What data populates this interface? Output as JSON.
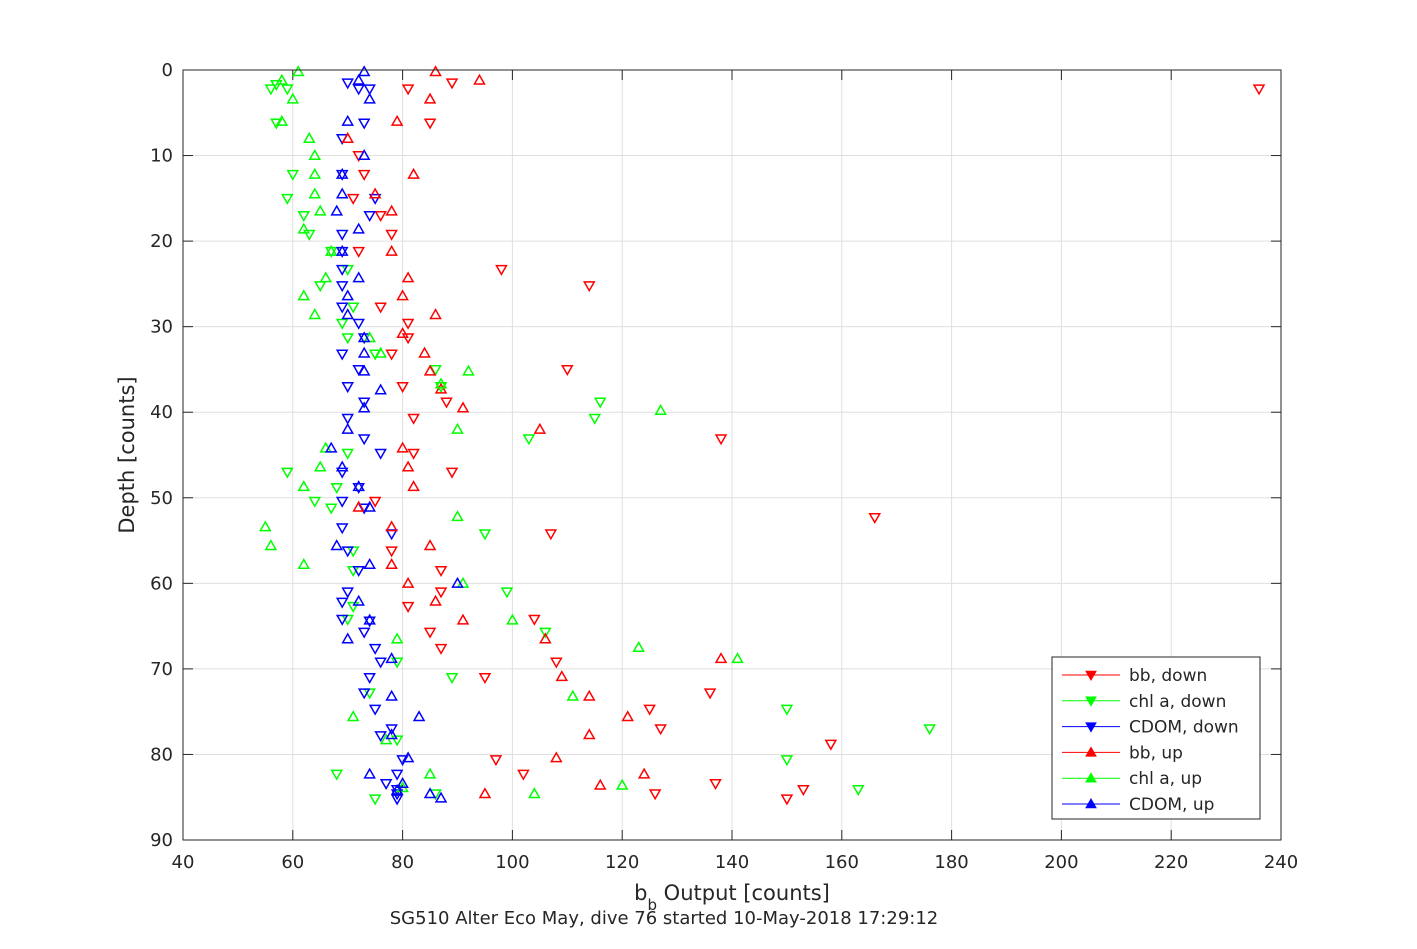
{
  "chart_data": {
    "type": "scatter",
    "xlabel_main": "b",
    "xlabel_sub": "b",
    "xlabel_rest": " Output [counts]",
    "ylabel": "Depth [counts]",
    "caption": "SG510 Alter Eco May, dive 76 started 10-May-2018 17:29:12",
    "xlim": [
      40,
      240
    ],
    "ylim": [
      0,
      90
    ],
    "y_reversed": true,
    "grid": true,
    "legend_position": "bottom-right",
    "x_ticks": [
      "40",
      "60",
      "80",
      "100",
      "120",
      "140",
      "160",
      "180",
      "200",
      "220",
      "240"
    ],
    "y_ticks": [
      "0",
      "10",
      "20",
      "30",
      "40",
      "50",
      "60",
      "70",
      "80",
      "90"
    ],
    "series": [
      {
        "name": "bb, down",
        "color": "#ff0000",
        "marker": "triangle-down",
        "points": [
          [
            89,
            1.5
          ],
          [
            81,
            2.2
          ],
          [
            236,
            2.2
          ],
          [
            85,
            6.2
          ],
          [
            72,
            10
          ],
          [
            73,
            12.2
          ],
          [
            71,
            15
          ],
          [
            76,
            17
          ],
          [
            78,
            19.2
          ],
          [
            72,
            21.2
          ],
          [
            98,
            23.3
          ],
          [
            114,
            25.2
          ],
          [
            76,
            27.7
          ],
          [
            81,
            29.6
          ],
          [
            81,
            31.3
          ],
          [
            78,
            33.2
          ],
          [
            110,
            35
          ],
          [
            80,
            37
          ],
          [
            88,
            38.8
          ],
          [
            82,
            40.7
          ],
          [
            138,
            43.1
          ],
          [
            82,
            44.8
          ],
          [
            89,
            47
          ],
          [
            75,
            50.4
          ],
          [
            166,
            52.3
          ],
          [
            107,
            54.2
          ],
          [
            78,
            56.2
          ],
          [
            87,
            58.5
          ],
          [
            87,
            61
          ],
          [
            81,
            62.7
          ],
          [
            104,
            64.2
          ],
          [
            85,
            65.7
          ],
          [
            87,
            67.6
          ],
          [
            108,
            69.2
          ],
          [
            95,
            71
          ],
          [
            136,
            72.8
          ],
          [
            125,
            74.7
          ],
          [
            127,
            77
          ],
          [
            158,
            78.8
          ],
          [
            97,
            80.6
          ],
          [
            102,
            82.3
          ],
          [
            137,
            83.4
          ],
          [
            153,
            84.1
          ],
          [
            126,
            84.6
          ],
          [
            150,
            85.2
          ]
        ]
      },
      {
        "name": "chl a, down",
        "color": "#00ff00",
        "marker": "triangle-down",
        "points": [
          [
            57,
            1.7
          ],
          [
            59,
            2.2
          ],
          [
            56,
            2.2
          ],
          [
            57,
            6.2
          ],
          [
            60,
            12.2
          ],
          [
            59,
            15
          ],
          [
            62,
            17
          ],
          [
            63,
            19.2
          ],
          [
            67,
            21.2
          ],
          [
            70,
            23.3
          ],
          [
            65,
            25.2
          ],
          [
            71,
            27.7
          ],
          [
            69,
            29.6
          ],
          [
            70,
            31.3
          ],
          [
            75,
            33.2
          ],
          [
            86,
            35
          ],
          [
            87,
            37
          ],
          [
            116,
            38.8
          ],
          [
            115,
            40.7
          ],
          [
            103,
            43.1
          ],
          [
            70,
            44.8
          ],
          [
            59,
            47
          ],
          [
            68,
            48.8
          ],
          [
            64,
            50.4
          ],
          [
            67,
            51.2
          ],
          [
            95,
            54.2
          ],
          [
            71,
            56.2
          ],
          [
            71,
            58.5
          ],
          [
            99,
            61
          ],
          [
            71,
            62.7
          ],
          [
            70,
            64.2
          ],
          [
            106,
            65.7
          ],
          [
            79,
            69.2
          ],
          [
            89,
            71
          ],
          [
            74,
            72.8
          ],
          [
            150,
            74.7
          ],
          [
            176,
            77
          ],
          [
            79,
            78.3
          ],
          [
            150,
            80.6
          ],
          [
            68,
            82.3
          ],
          [
            163,
            84.1
          ],
          [
            86,
            84.6
          ],
          [
            75,
            85.2
          ]
        ]
      },
      {
        "name": "CDOM, down",
        "color": "#0000ff",
        "marker": "triangle-down",
        "points": [
          [
            70,
            1.5
          ],
          [
            72,
            2.2
          ],
          [
            74,
            2.2
          ],
          [
            73,
            6.2
          ],
          [
            69,
            8
          ],
          [
            69,
            12.2
          ],
          [
            75,
            15
          ],
          [
            74,
            17
          ],
          [
            69,
            19.2
          ],
          [
            69,
            21.2
          ],
          [
            69,
            23.3
          ],
          [
            69,
            25.2
          ],
          [
            69,
            27.7
          ],
          [
            72,
            29.6
          ],
          [
            73,
            31.3
          ],
          [
            69,
            33.2
          ],
          [
            72,
            35
          ],
          [
            70,
            37
          ],
          [
            73,
            38.8
          ],
          [
            70,
            40.7
          ],
          [
            73,
            43.1
          ],
          [
            76,
            44.8
          ],
          [
            69,
            47
          ],
          [
            72,
            48.8
          ],
          [
            69,
            50.4
          ],
          [
            73,
            51.2
          ],
          [
            69,
            53.5
          ],
          [
            78,
            54.2
          ],
          [
            70,
            56.2
          ],
          [
            72,
            58.5
          ],
          [
            70,
            61
          ],
          [
            69,
            62.2
          ],
          [
            69,
            64.2
          ],
          [
            74,
            64.4
          ],
          [
            73,
            65.7
          ],
          [
            75,
            67.6
          ],
          [
            76,
            69.2
          ],
          [
            74,
            71
          ],
          [
            73,
            72.8
          ],
          [
            75,
            74.7
          ],
          [
            78,
            77
          ],
          [
            76,
            77.8
          ],
          [
            80,
            80.6
          ],
          [
            79,
            82.3
          ],
          [
            77,
            83.4
          ],
          [
            79,
            84.1
          ],
          [
            79,
            84.6
          ],
          [
            79,
            85.2
          ]
        ]
      },
      {
        "name": "bb, up",
        "color": "#ff0000",
        "marker": "triangle-up",
        "points": [
          [
            86,
            0.2
          ],
          [
            94,
            1.2
          ],
          [
            85,
            3.4
          ],
          [
            79,
            6
          ],
          [
            70,
            8
          ],
          [
            82,
            12.2
          ],
          [
            75,
            14.5
          ],
          [
            78,
            16.5
          ],
          [
            78,
            21.2
          ],
          [
            81,
            24.3
          ],
          [
            80,
            26.4
          ],
          [
            86,
            28.6
          ],
          [
            80,
            30.8
          ],
          [
            84,
            33.1
          ],
          [
            85,
            35.2
          ],
          [
            87,
            37.3
          ],
          [
            91,
            39.5
          ],
          [
            105,
            42
          ],
          [
            80,
            44.2
          ],
          [
            81,
            46.4
          ],
          [
            82,
            48.7
          ],
          [
            72,
            51.1
          ],
          [
            78,
            53.4
          ],
          [
            85,
            55.6
          ],
          [
            78,
            57.8
          ],
          [
            81,
            60
          ],
          [
            86,
            62.1
          ],
          [
            91,
            64.3
          ],
          [
            106,
            66.5
          ],
          [
            138,
            68.8
          ],
          [
            109,
            70.9
          ],
          [
            114,
            73.2
          ],
          [
            121,
            75.6
          ],
          [
            114,
            77.7
          ],
          [
            108,
            80.4
          ],
          [
            124,
            82.3
          ],
          [
            116,
            83.6
          ],
          [
            95,
            84.6
          ]
        ]
      },
      {
        "name": "chl a, up",
        "color": "#00ff00",
        "marker": "triangle-up",
        "points": [
          [
            61,
            0.2
          ],
          [
            58,
            1.2
          ],
          [
            60,
            3.4
          ],
          [
            58,
            6
          ],
          [
            63,
            8
          ],
          [
            64,
            10
          ],
          [
            64,
            12.2
          ],
          [
            64,
            14.5
          ],
          [
            65,
            16.5
          ],
          [
            62,
            18.6
          ],
          [
            67,
            21.2
          ],
          [
            66,
            24.3
          ],
          [
            62,
            26.4
          ],
          [
            64,
            28.6
          ],
          [
            74,
            31.3
          ],
          [
            76,
            33.1
          ],
          [
            92,
            35.2
          ],
          [
            87,
            36.7
          ],
          [
            127,
            39.8
          ],
          [
            90,
            42
          ],
          [
            66,
            44.2
          ],
          [
            65,
            46.4
          ],
          [
            62,
            48.7
          ],
          [
            90,
            52.2
          ],
          [
            55,
            53.4
          ],
          [
            56,
            55.6
          ],
          [
            62,
            57.8
          ],
          [
            91,
            60
          ],
          [
            100,
            64.3
          ],
          [
            79,
            66.5
          ],
          [
            141,
            68.8
          ],
          [
            123,
            67.5
          ],
          [
            111,
            73.2
          ],
          [
            71,
            75.6
          ],
          [
            77,
            78.3
          ],
          [
            85,
            82.3
          ],
          [
            120,
            83.6
          ],
          [
            80,
            83.9
          ],
          [
            104,
            84.6
          ]
        ]
      },
      {
        "name": "CDOM, up",
        "color": "#0000ff",
        "marker": "triangle-up",
        "points": [
          [
            73,
            0.2
          ],
          [
            72,
            1.2
          ],
          [
            74,
            3.4
          ],
          [
            70,
            6
          ],
          [
            73,
            10
          ],
          [
            69,
            12.2
          ],
          [
            69,
            14.5
          ],
          [
            68,
            16.5
          ],
          [
            72,
            18.6
          ],
          [
            69,
            21.2
          ],
          [
            72,
            24.3
          ],
          [
            70,
            26.4
          ],
          [
            70,
            28.6
          ],
          [
            73,
            31.3
          ],
          [
            73,
            33.1
          ],
          [
            73,
            35.2
          ],
          [
            76,
            37.4
          ],
          [
            73,
            39.5
          ],
          [
            70,
            42
          ],
          [
            67,
            44.2
          ],
          [
            69,
            46.4
          ],
          [
            72,
            48.7
          ],
          [
            74,
            51.1
          ],
          [
            68,
            55.6
          ],
          [
            74,
            57.8
          ],
          [
            90,
            60
          ],
          [
            72,
            62.1
          ],
          [
            74,
            64.3
          ],
          [
            70,
            66.5
          ],
          [
            78,
            68.8
          ],
          [
            78,
            73.2
          ],
          [
            83,
            75.6
          ],
          [
            78,
            77.7
          ],
          [
            81,
            80.4
          ],
          [
            74,
            82.3
          ],
          [
            80,
            83.4
          ],
          [
            79,
            84.2
          ],
          [
            85,
            84.6
          ],
          [
            87,
            85.1
          ]
        ]
      }
    ]
  }
}
